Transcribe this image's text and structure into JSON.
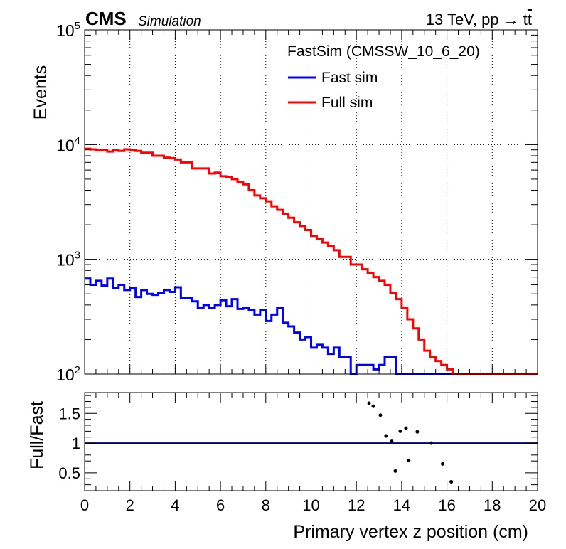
{
  "header": {
    "experiment": "CMS",
    "tag": "Simulation",
    "energy_label": "13 TeV, pp → t",
    "energy_label_bar": "t"
  },
  "chart_data": [
    {
      "type": "line",
      "subtype": "step-histogram",
      "ylabel": "Events",
      "ylog": true,
      "ylim": [
        100,
        100000
      ],
      "xlim": [
        0,
        20
      ],
      "grid": true,
      "y_tick_labels": [
        {
          "value": 100,
          "base": "10",
          "exp": "2"
        },
        {
          "value": 1000,
          "base": "10",
          "exp": "3"
        },
        {
          "value": 10000,
          "base": "10",
          "exp": "4"
        },
        {
          "value": 100000,
          "base": "10",
          "exp": "5"
        }
      ],
      "legend": {
        "placement": "top-right",
        "title": "FastSim (CMSSW_10_6_20)"
      },
      "bin_width": 0.25,
      "series": [
        {
          "name": "Fast sim",
          "color": "#0000ff",
          "values": [
            680,
            600,
            650,
            590,
            680,
            560,
            600,
            540,
            560,
            470,
            540,
            500,
            490,
            510,
            540,
            520,
            570,
            460,
            460,
            430,
            380,
            400,
            380,
            400,
            440,
            390,
            450,
            370,
            380,
            360,
            330,
            360,
            290,
            330,
            380,
            280,
            260,
            230,
            200,
            210,
            170,
            180,
            170,
            150,
            170,
            140,
            140,
            100,
            120,
            120,
            120,
            110,
            120,
            140,
            140,
            100,
            100,
            100,
            100,
            100,
            100,
            100,
            100,
            100,
            100,
            100,
            100,
            100,
            100,
            100,
            100,
            100,
            100,
            100,
            100,
            100,
            100,
            100,
            100,
            100
          ]
        },
        {
          "name": "Full sim",
          "color": "#ff0000",
          "values": [
            9200,
            9100,
            8900,
            9000,
            8700,
            8900,
            8800,
            9100,
            8900,
            8800,
            8500,
            8500,
            8000,
            8000,
            7700,
            7600,
            7400,
            7000,
            7000,
            6200,
            6200,
            6200,
            5600,
            5700,
            5300,
            5200,
            5000,
            4700,
            4500,
            4000,
            3600,
            3400,
            3200,
            2900,
            2700,
            2500,
            2300,
            2100,
            1950,
            1800,
            1600,
            1500,
            1400,
            1300,
            1200,
            1050,
            1050,
            900,
            900,
            820,
            760,
            700,
            650,
            600,
            510,
            450,
            380,
            300,
            250,
            200,
            160,
            140,
            130,
            120,
            110,
            100,
            100,
            100,
            100,
            100,
            100,
            100,
            100,
            100,
            100,
            100,
            100,
            100,
            100,
            100
          ]
        }
      ]
    },
    {
      "type": "scatter",
      "ylabel": "Full/Fast",
      "xlabel": "Primary vertex z position (cm)",
      "xlim": [
        0,
        20
      ],
      "ylim": [
        0.2,
        1.85
      ],
      "x_ticks": [
        0,
        2,
        4,
        6,
        8,
        10,
        12,
        14,
        16,
        18,
        20
      ],
      "y_ticks": [
        0.5,
        1,
        1.5
      ],
      "reference_line": 1,
      "reference_color": "#000080",
      "x": [
        12.56,
        12.75,
        13.06,
        13.31,
        13.56,
        13.72,
        13.94,
        14.19,
        14.31,
        14.69,
        15.31,
        15.81,
        16.19
      ],
      "y": [
        1.67,
        1.62,
        1.47,
        1.12,
        1.03,
        0.53,
        1.2,
        1.25,
        0.71,
        1.19,
        1.0,
        0.65,
        0.35
      ]
    }
  ]
}
